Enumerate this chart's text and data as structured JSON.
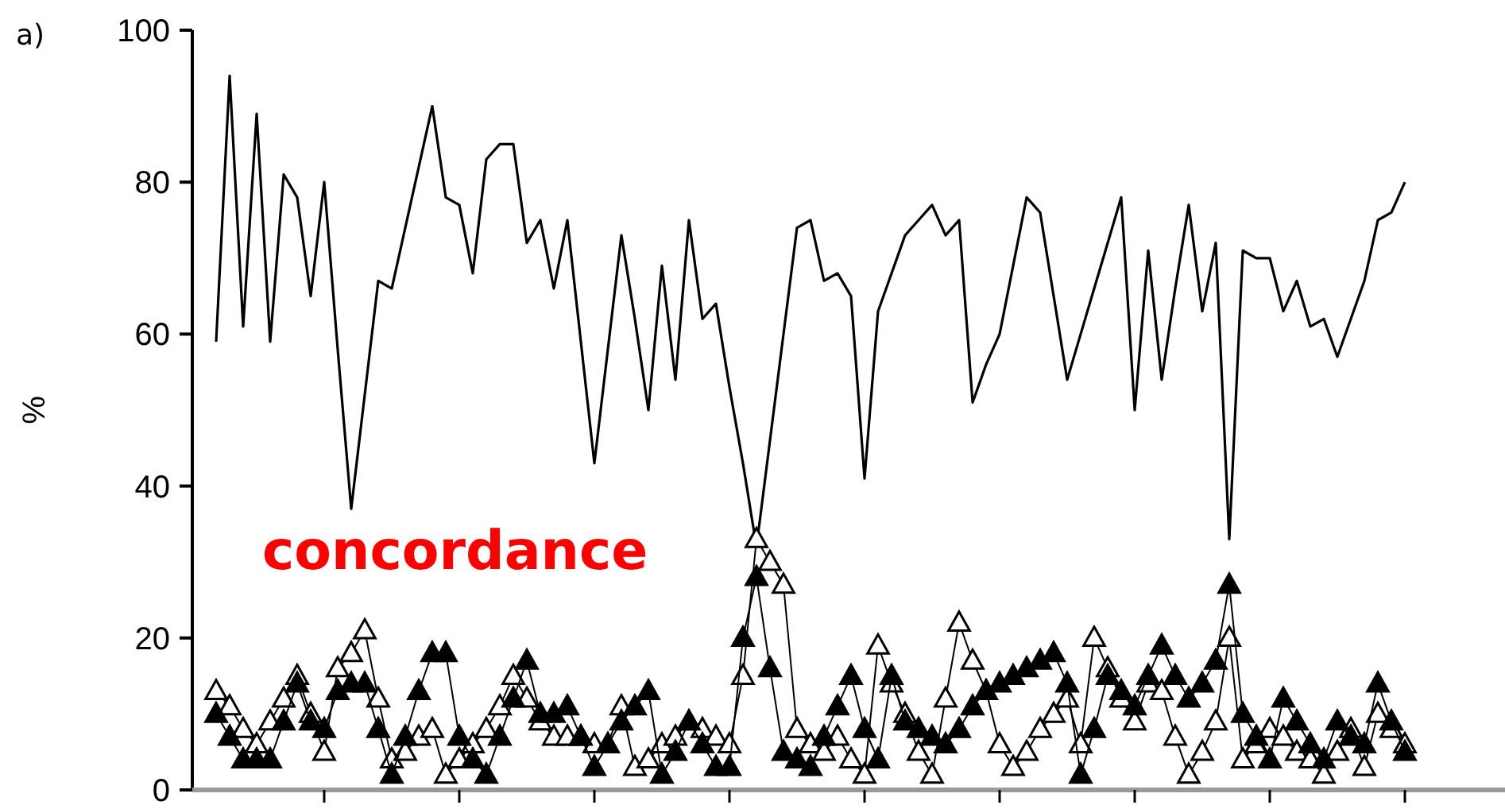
{
  "chart_data": {
    "type": "line",
    "ylabel": "%",
    "annotations": [
      "a)",
      "concordance"
    ],
    "categories": [
      null,
      null,
      null,
      null,
      null,
      null,
      null,
      null,
      null,
      null,
      null,
      null,
      null,
      null,
      null,
      null,
      null,
      null,
      null,
      null,
      null,
      null,
      null,
      null,
      null,
      null,
      null,
      null,
      null,
      null,
      null,
      null,
      null,
      null,
      null,
      null,
      null,
      null,
      null,
      null,
      null,
      null,
      null,
      null,
      null,
      null,
      null,
      null,
      null,
      null,
      null,
      null,
      null,
      null,
      null,
      null,
      null,
      null,
      null,
      null,
      null,
      null,
      null,
      null,
      null,
      null,
      null,
      null,
      null,
      null,
      null,
      null,
      null,
      null,
      null,
      null,
      null,
      null,
      null,
      null,
      null,
      null,
      null,
      null,
      null,
      null,
      null,
      null,
      null
    ],
    "ylim": [
      0,
      100
    ],
    "yticks": [
      0,
      20,
      40,
      60,
      80,
      100
    ],
    "tick_labels": "y",
    "grid": false,
    "line_style": "solid",
    "series": [
      {
        "color": "#000000",
        "marker": "none",
        "values": [
          59,
          94,
          61,
          89,
          59,
          81,
          78,
          65,
          80,
          58,
          37,
          52,
          67,
          66,
          74,
          82,
          90,
          78,
          77,
          68,
          83,
          85,
          85,
          72,
          75,
          66,
          75,
          59,
          43,
          58,
          73,
          62,
          50,
          69,
          54,
          75,
          62,
          64,
          53,
          43,
          32,
          46,
          60,
          74,
          75,
          67,
          68,
          65,
          41,
          63,
          68,
          73,
          75,
          77,
          73,
          75,
          51,
          56,
          60,
          69,
          78,
          76,
          65,
          54,
          60,
          66,
          72,
          78,
          50,
          71,
          54,
          66,
          77,
          63,
          72,
          33,
          71,
          70,
          70,
          63,
          67,
          61,
          62,
          57,
          62,
          67,
          75,
          76,
          80
        ]
      },
      {
        "color": "#ffffff",
        "marker": "triangle",
        "values": [
          13,
          11,
          8,
          6,
          9,
          12,
          15,
          10,
          5,
          16,
          18,
          21,
          12,
          4,
          5,
          7,
          8,
          2,
          4,
          6,
          8,
          11,
          15,
          12,
          9,
          7,
          7,
          7,
          6,
          6,
          11,
          3,
          4,
          6,
          7,
          9,
          8,
          7,
          6,
          15,
          33,
          30,
          27,
          8,
          6,
          5,
          7,
          4,
          2,
          19,
          14,
          10,
          5,
          2,
          12,
          22,
          17,
          13,
          6,
          3,
          5,
          8,
          10,
          12,
          6,
          20,
          16,
          12,
          9,
          14,
          13,
          7,
          2,
          5,
          9,
          20,
          4,
          6,
          8,
          7,
          5,
          4,
          2,
          5,
          8,
          3,
          10,
          8,
          6
        ]
      },
      {
        "color": "#000000",
        "marker": "triangle",
        "values": [
          10,
          7,
          4,
          4,
          4,
          9,
          14,
          9,
          8,
          13,
          14,
          14,
          8,
          2,
          7,
          13,
          18,
          18,
          7,
          4,
          2,
          7,
          12,
          17,
          10,
          10,
          11,
          7,
          3,
          6,
          9,
          11,
          13,
          2,
          5,
          9,
          6,
          3,
          3,
          20,
          28,
          16,
          5,
          4,
          3,
          7,
          11,
          15,
          8,
          4,
          15,
          9,
          8,
          7,
          6,
          8,
          11,
          13,
          14,
          15,
          16,
          17,
          18,
          14,
          2,
          8,
          15,
          13,
          11,
          15,
          19,
          15,
          12,
          14,
          17,
          27,
          10,
          7,
          4,
          12,
          9,
          6,
          4,
          9,
          7,
          6,
          14,
          9,
          5
        ]
      }
    ]
  }
}
